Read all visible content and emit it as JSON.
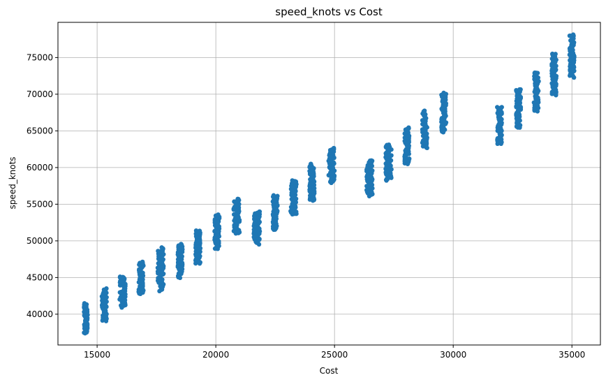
{
  "chart_data": {
    "type": "scatter",
    "title": "speed_knots vs Cost",
    "xlabel": "Cost",
    "ylabel": "speed_knots",
    "xlim": [
      13350,
      36200
    ],
    "ylim": [
      35800,
      79800
    ],
    "xticks": [
      15000,
      20000,
      25000,
      30000,
      35000
    ],
    "yticks": [
      40000,
      45000,
      50000,
      55000,
      60000,
      65000,
      70000,
      75000
    ],
    "grid": true,
    "marker_color": "#1f77b4",
    "series": [
      {
        "clusters": [
          {
            "x": [
              14450,
              14600
            ],
            "y": [
              37400,
              41400
            ]
          },
          {
            "x": [
              15200,
              15400
            ],
            "y": [
              39100,
              43400
            ]
          },
          {
            "x": [
              15950,
              16200
            ],
            "y": [
              41000,
              45200
            ]
          },
          {
            "x": [
              16750,
              16950
            ],
            "y": [
              42800,
              47100
            ]
          },
          {
            "x": [
              17550,
              17800
            ],
            "y": [
              43200,
              49000
            ]
          },
          {
            "x": [
              18400,
              18600
            ],
            "y": [
              45000,
              49500
            ]
          },
          {
            "x": [
              19150,
              19350
            ],
            "y": [
              46900,
              51400
            ]
          },
          {
            "x": [
              19950,
              20150
            ],
            "y": [
              48900,
              53500
            ]
          },
          {
            "x": [
              20750,
              21000
            ],
            "y": [
              51000,
              55700
            ]
          },
          {
            "x": [
              21600,
              21850
            ],
            "y": [
              49600,
              54000
            ]
          },
          {
            "x": [
              22400,
              22600
            ],
            "y": [
              51500,
              56100
            ]
          },
          {
            "x": [
              23150,
              23400
            ],
            "y": [
              53600,
              58200
            ]
          },
          {
            "x": [
              23950,
              24150
            ],
            "y": [
              55500,
              60500
            ]
          },
          {
            "x": [
              24750,
              25000
            ],
            "y": [
              57900,
              62600
            ]
          },
          {
            "x": [
              26350,
              26600
            ],
            "y": [
              56200,
              61000
            ]
          },
          {
            "x": [
              27150,
              27400
            ],
            "y": [
              58200,
              63100
            ]
          },
          {
            "x": [
              27950,
              28150
            ],
            "y": [
              60500,
              65400
            ]
          },
          {
            "x": [
              28700,
              28900
            ],
            "y": [
              62700,
              67700
            ]
          },
          {
            "x": [
              29500,
              29700
            ],
            "y": [
              64900,
              70100
            ]
          },
          {
            "x": [
              31850,
              32050
            ],
            "y": [
              63200,
              68300
            ]
          },
          {
            "x": [
              32650,
              32850
            ],
            "y": [
              65500,
              70600
            ]
          },
          {
            "x": [
              33400,
              33600
            ],
            "y": [
              67700,
              73000
            ]
          },
          {
            "x": [
              34150,
              34350
            ],
            "y": [
              70000,
              75600
            ]
          },
          {
            "x": [
              34900,
              35100
            ],
            "y": [
              72400,
              78100
            ]
          }
        ]
      }
    ]
  }
}
